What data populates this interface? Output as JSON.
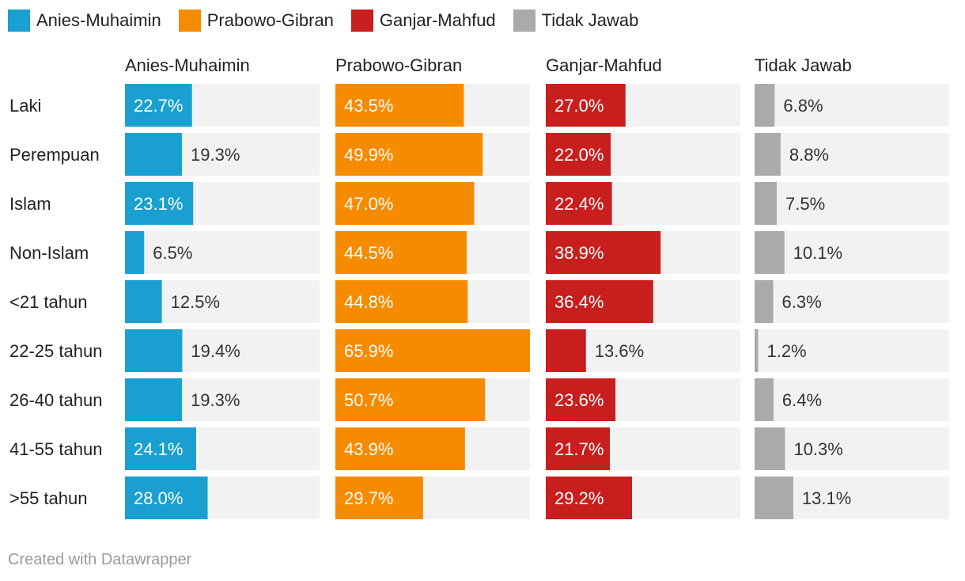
{
  "chart_data": {
    "type": "bar",
    "footer": "Created with Datawrapper",
    "categories": [
      "Laki",
      "Perempuan",
      "Islam",
      "Non-Islam",
      "<21 tahun",
      "22-25 tahun",
      "26-40 tahun",
      "41-55 tahun",
      ">55 tahun"
    ],
    "series": [
      {
        "name": "Anies-Muhaimin",
        "color": "#1aa0d0",
        "values": [
          22.7,
          19.3,
          23.1,
          6.5,
          12.5,
          19.4,
          19.3,
          24.1,
          28.0
        ],
        "labels": [
          "22.7%",
          "19.3%",
          "23.1%",
          "6.5%",
          "12.5%",
          "19.4%",
          "19.3%",
          "24.1%",
          "28.0%"
        ]
      },
      {
        "name": "Prabowo-Gibran",
        "color": "#f68b00",
        "values": [
          43.5,
          49.9,
          47.0,
          44.5,
          44.8,
          65.9,
          50.7,
          43.9,
          29.7
        ],
        "labels": [
          "43.5%",
          "49.9%",
          "47.0%",
          "44.5%",
          "44.8%",
          "65.9%",
          "50.7%",
          "43.9%",
          "29.7%"
        ]
      },
      {
        "name": "Ganjar-Mahfud",
        "color": "#c81e1e",
        "values": [
          27.0,
          22.0,
          22.4,
          38.9,
          36.4,
          13.6,
          23.6,
          21.7,
          29.2
        ],
        "labels": [
          "27.0%",
          "22.0%",
          "22.4%",
          "38.9%",
          "36.4%",
          "13.6%",
          "23.6%",
          "21.7%",
          "29.2%"
        ]
      },
      {
        "name": "Tidak Jawab",
        "color": "#aaaaaa",
        "values": [
          6.8,
          8.8,
          7.5,
          10.1,
          6.3,
          1.2,
          6.4,
          10.3,
          13.1
        ],
        "labels": [
          "6.8%",
          "8.8%",
          "7.5%",
          "10.1%",
          "6.3%",
          "1.2%",
          "6.4%",
          "10.3%",
          "13.1%"
        ]
      }
    ],
    "xlim": [
      0,
      65.9
    ],
    "legend_position": "top-left",
    "grid": false,
    "track_color": "#f2f2f2"
  }
}
